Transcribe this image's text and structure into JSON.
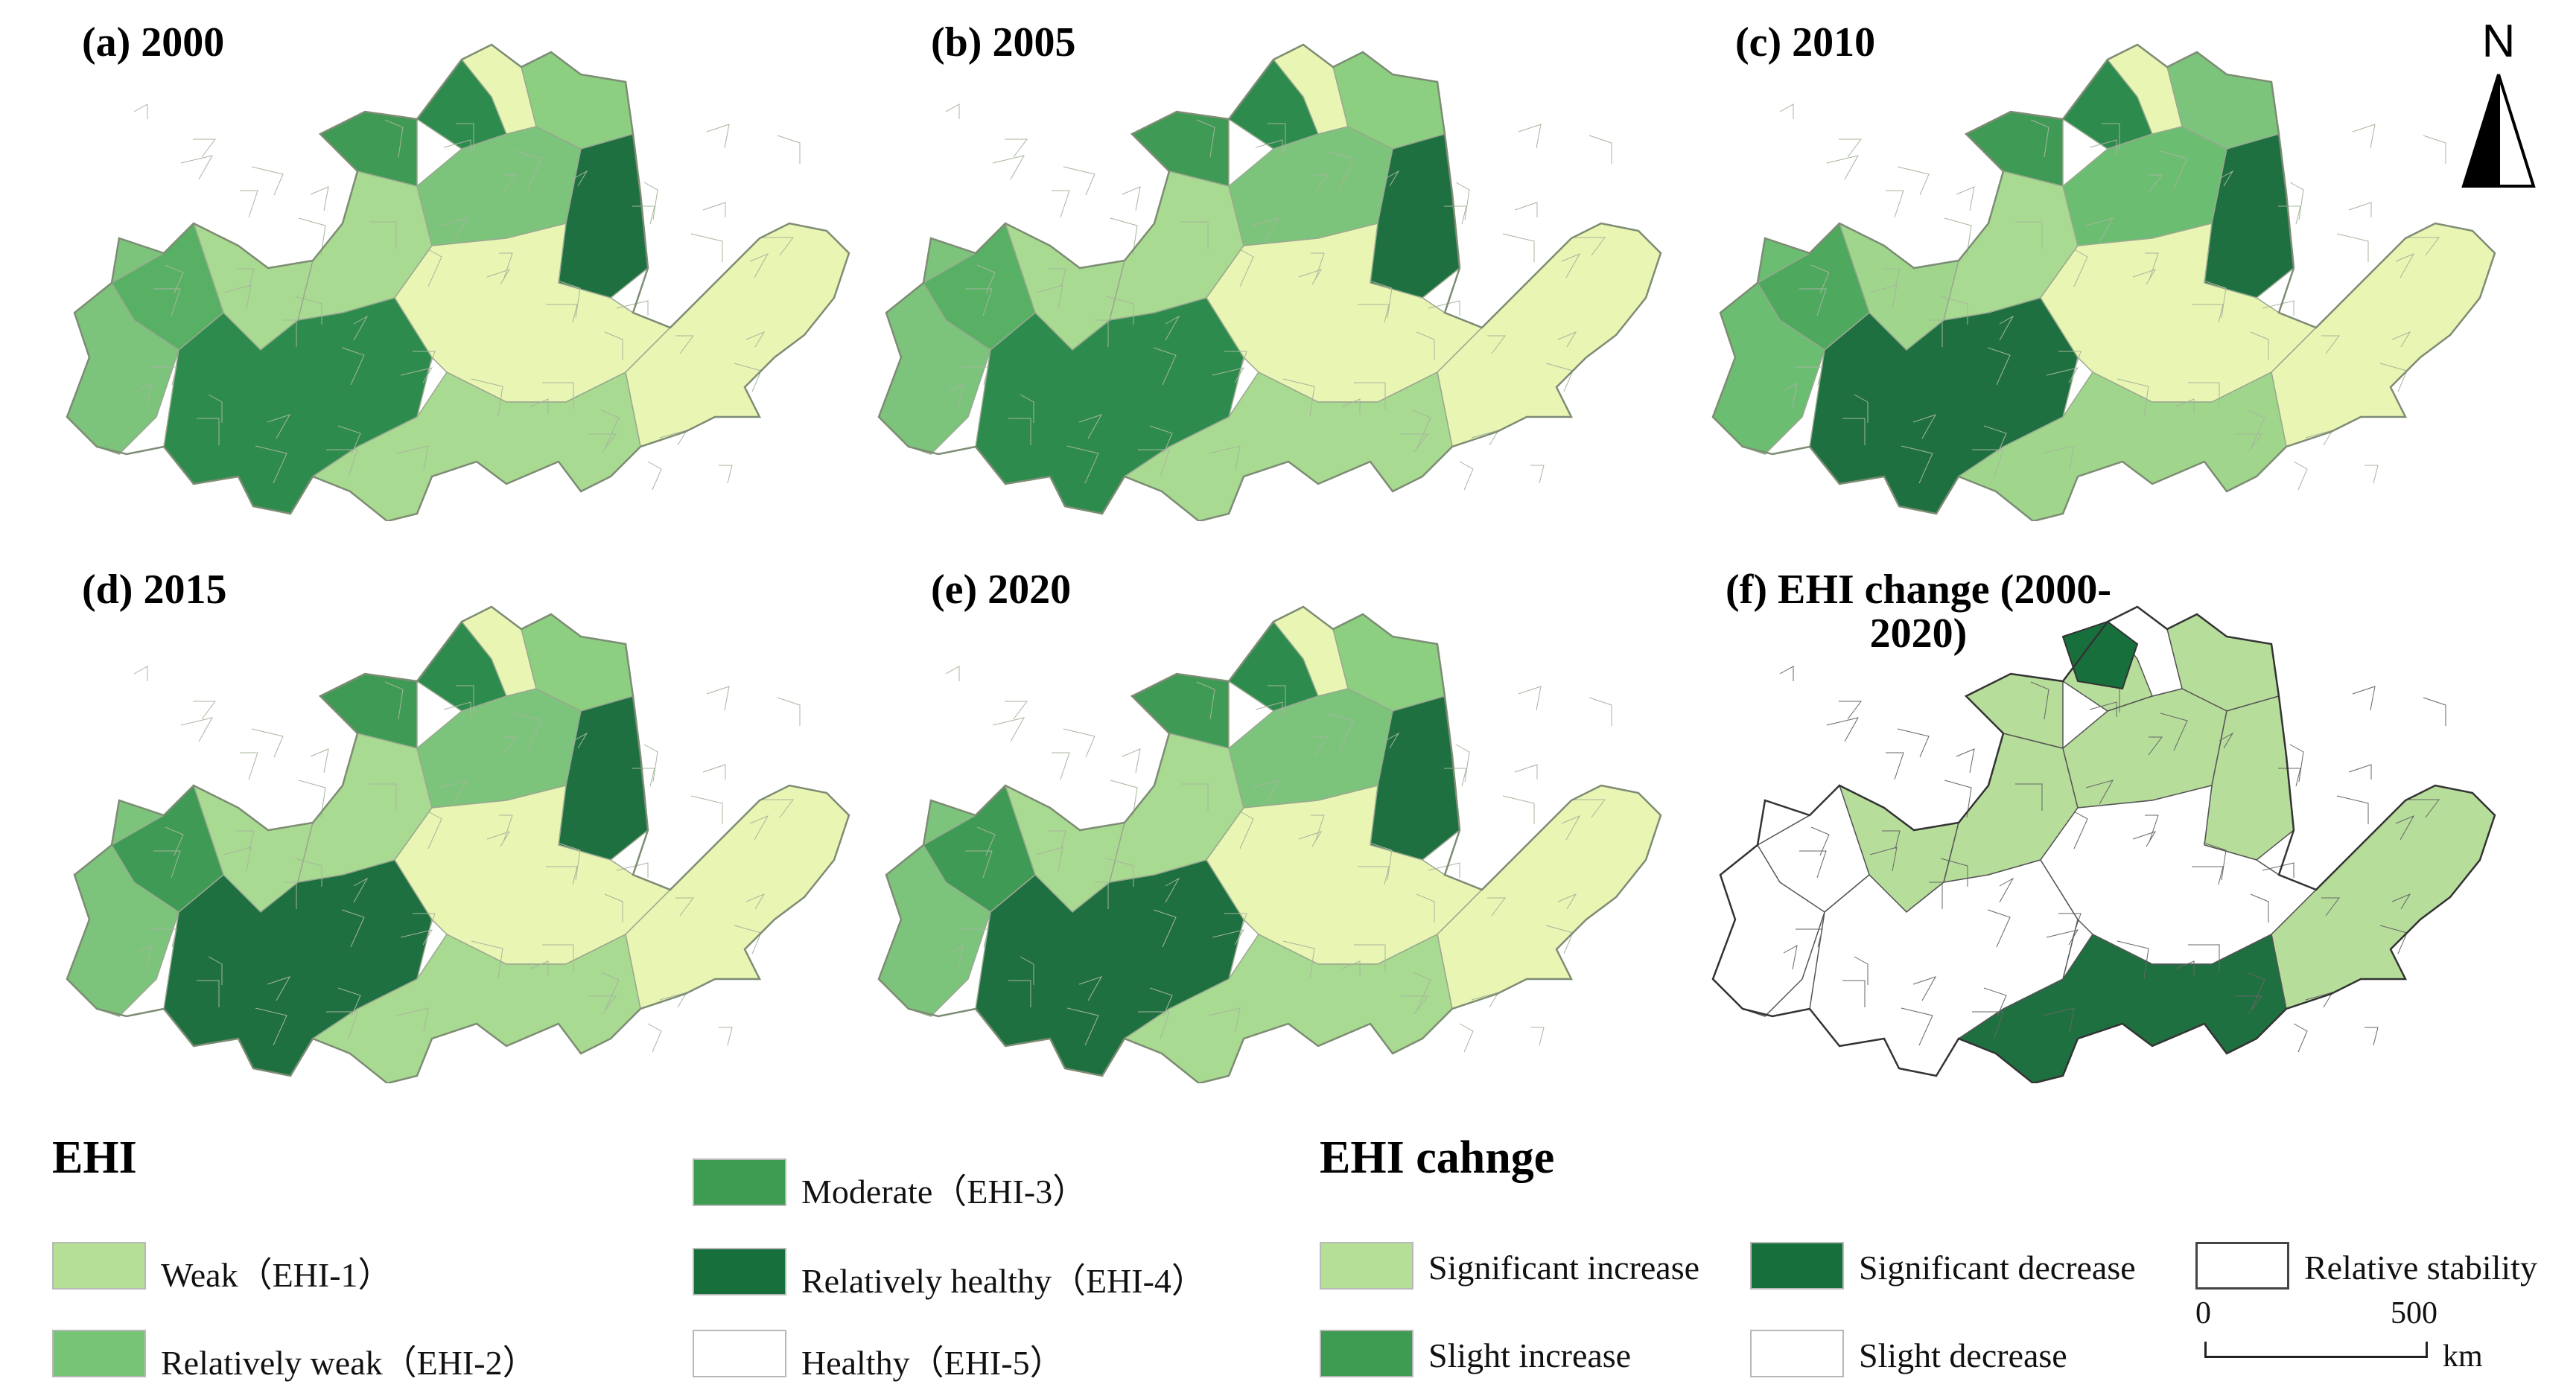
{
  "panels": [
    {
      "label": "(a) 2000",
      "palette": [
        "#7cc47c",
        "#a9da91",
        "#58b064",
        "#a9da91",
        "#3f9a55",
        "#2e8b4e",
        "#8ccf81",
        "#7cc47c",
        "#e8f5b3",
        "#1e7040",
        "#2e8b4e",
        "#e8f5b3",
        "#e8f5b3",
        "#a9da91"
      ]
    },
    {
      "label": "(b) 2005",
      "palette": [
        "#7cc47c",
        "#a9da91",
        "#58b064",
        "#a9da91",
        "#3f9a55",
        "#2e8b4e",
        "#8ccf81",
        "#7cc47c",
        "#e8f5b3",
        "#1e7040",
        "#2e8b4e",
        "#e8f5b3",
        "#e8f5b3",
        "#a9da91"
      ]
    },
    {
      "label": "(c) 2010",
      "palette": [
        "#6bbd72",
        "#9fd68c",
        "#4ea85e",
        "#a9da91",
        "#3f9a55",
        "#2e8b4e",
        "#7cc47c",
        "#6bbd72",
        "#e8f5b3",
        "#1e7040",
        "#1e7040",
        "#e8f5b3",
        "#e8f5b3",
        "#9fd68c"
      ]
    },
    {
      "label": "(d) 2015",
      "palette": [
        "#7cc47c",
        "#a9da91",
        "#3f9a55",
        "#a9da91",
        "#3f9a55",
        "#2e8b4e",
        "#8ccf81",
        "#7cc47c",
        "#e8f5b3",
        "#1e7040",
        "#1e7040",
        "#e8f5b3",
        "#e8f5b3",
        "#a9da91"
      ]
    },
    {
      "label": "(e) 2020",
      "palette": [
        "#7cc47c",
        "#a9da91",
        "#3f9a55",
        "#a9da91",
        "#3f9a55",
        "#2e8b4e",
        "#8ccf81",
        "#7cc47c",
        "#e8f5b3",
        "#1e7040",
        "#1e7040",
        "#e8f5b3",
        "#e8f5b3",
        "#a9da91"
      ]
    },
    {
      "label": "(f) EHI change (2000-2020)",
      "palette": [
        "#ffffff",
        "#b7dd9b",
        "#ffffff",
        "#b7dd9b",
        "#b7dd9b",
        "#b7dd9b",
        "#b7dd9b",
        "#b7dd9b",
        "#ffffff",
        "#b7dd9b",
        "#ffffff",
        "#ffffff",
        "#b7dd9b",
        "#1e7040"
      ]
    }
  ],
  "north_arrow": {
    "letter": "N"
  },
  "legend_ehi": {
    "title": "EHI",
    "items": [
      {
        "label": "Weak（EHI-1）",
        "color": "#f0f6b6"
      },
      {
        "label": "Relatively weak（EHI-2）",
        "color": "#b5de96"
      },
      {
        "label": "Moderate（EHI-3）",
        "color": "#78c476"
      },
      {
        "label": "Relatively healthy（EHI-4）",
        "color": "#3d9b52"
      },
      {
        "label": "Healthy（EHI-5）",
        "color": "#17703c"
      }
    ]
  },
  "legend_change": {
    "title": "EHI cahnge",
    "items": [
      {
        "label": "Significant increase",
        "color": "#78c476"
      },
      {
        "label": "Slight increase",
        "color": "#b5de96"
      },
      {
        "label": "Significant decrease",
        "color": "#3d9b52"
      },
      {
        "label": "Slight decrease",
        "color": "#17703c"
      },
      {
        "label": "Relative stability",
        "color": "#ffffff"
      }
    ]
  },
  "scale_bar": {
    "start": "0",
    "end": "500",
    "unit": "km"
  }
}
